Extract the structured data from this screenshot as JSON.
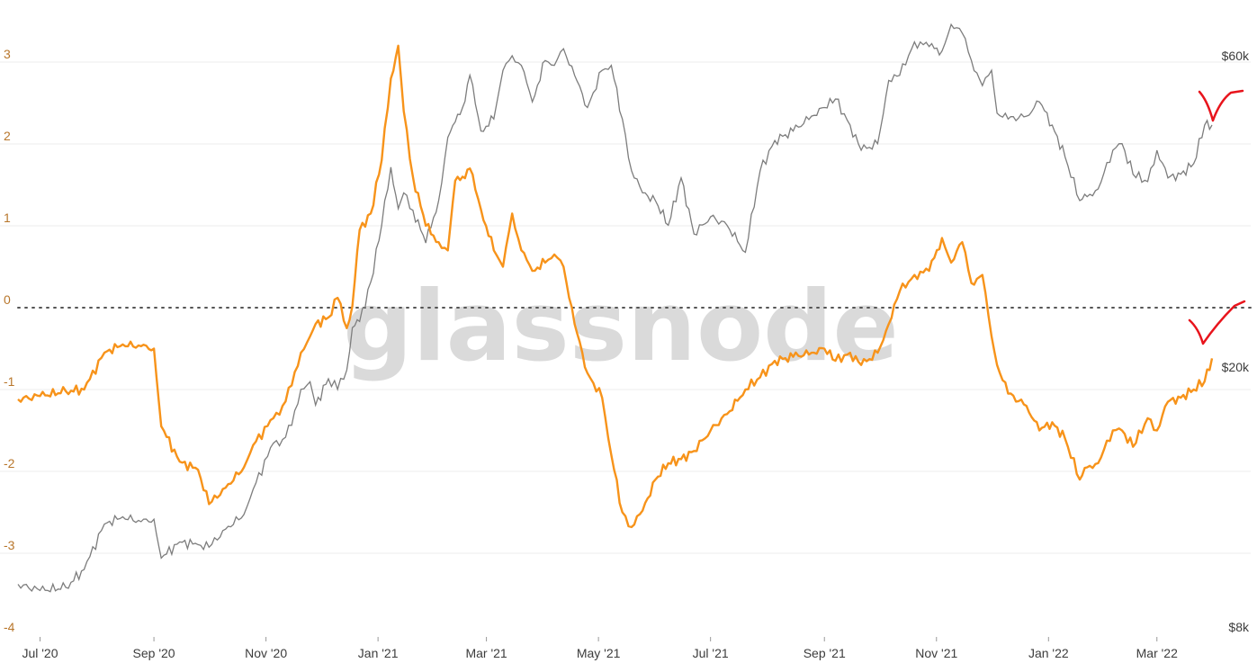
{
  "watermark": "glassnode",
  "colors": {
    "oscillator": "#f7931a",
    "price": "#7d7d7d",
    "annotation": "#e8141c",
    "grid": "#ececec"
  },
  "chart_data": {
    "type": "line",
    "title": "",
    "xlabel": "",
    "ylabel_left": "",
    "ylabel_right": "",
    "x_ticks": [
      "Jul '20",
      "Sep '20",
      "Nov '20",
      "Jan '21",
      "Mar '21",
      "May '21",
      "Jul '21",
      "Sep '21",
      "Nov '21",
      "Jan '22",
      "Mar '22"
    ],
    "y_left": {
      "range": [
        -4,
        3.3
      ],
      "ticks": [
        "3",
        "2",
        "1",
        "0",
        "-1",
        "-2",
        "-3",
        "-4"
      ]
    },
    "y_right": {
      "scale": "log",
      "range": [
        8000,
        68000
      ],
      "ticks": [
        "$60k",
        "$20k",
        "$8k"
      ]
    },
    "zero_line": {
      "value": 0,
      "style": "dotted"
    },
    "legend": "none",
    "grid": true,
    "series": [
      {
        "axis": "left",
        "x": [
          "2020-06-19",
          "2020-07-01",
          "2020-07-15",
          "2020-07-25",
          "2020-08-05",
          "2020-08-15",
          "2020-08-25",
          "2020-09-01",
          "2020-09-05",
          "2020-09-15",
          "2020-09-25",
          "2020-10-01",
          "2020-10-10",
          "2020-10-20",
          "2020-10-25",
          "2020-11-05",
          "2020-11-10",
          "2020-11-15",
          "2020-11-20",
          "2020-11-25",
          "2020-11-28",
          "2020-12-05",
          "2020-12-10",
          "2020-12-15",
          "2020-12-18",
          "2020-12-22",
          "2020-12-28",
          "2021-01-03",
          "2021-01-08",
          "2021-01-12",
          "2021-01-15",
          "2021-01-20",
          "2021-01-27",
          "2021-02-03",
          "2021-02-08",
          "2021-02-12",
          "2021-02-16",
          "2021-02-20",
          "2021-02-26",
          "2021-03-05",
          "2021-03-10",
          "2021-03-15",
          "2021-03-20",
          "2021-03-26",
          "2021-04-02",
          "2021-04-07",
          "2021-04-12",
          "2021-04-18",
          "2021-04-25",
          "2021-05-03",
          "2021-05-08",
          "2021-05-14",
          "2021-05-19",
          "2021-05-25",
          "2021-06-01",
          "2021-06-08",
          "2021-06-15",
          "2021-06-22",
          "2021-07-01",
          "2021-07-10",
          "2021-07-20",
          "2021-07-28",
          "2021-08-05",
          "2021-08-15",
          "2021-08-25",
          "2021-09-01",
          "2021-09-07",
          "2021-09-15",
          "2021-09-21",
          "2021-09-30",
          "2021-10-06",
          "2021-10-12",
          "2021-10-20",
          "2021-10-28",
          "2021-11-04",
          "2021-11-09",
          "2021-11-15",
          "2021-11-20",
          "2021-11-26",
          "2021-12-01",
          "2021-12-04",
          "2021-12-10",
          "2021-12-20",
          "2021-12-27",
          "2022-01-03",
          "2022-01-10",
          "2022-01-18",
          "2022-01-22",
          "2022-01-28",
          "2022-02-05",
          "2022-02-10",
          "2022-02-16",
          "2022-02-24",
          "2022-03-01",
          "2022-03-07",
          "2022-03-14",
          "2022-03-21",
          "2022-03-27",
          "2022-03-31"
        ],
        "values": [
          -1.12,
          -1.08,
          -1.02,
          -1.0,
          -0.55,
          -0.45,
          -0.47,
          -0.5,
          -1.45,
          -1.88,
          -1.98,
          -2.4,
          -2.2,
          -1.95,
          -1.68,
          -1.35,
          -1.2,
          -0.95,
          -0.55,
          -0.35,
          -0.2,
          -0.12,
          0.12,
          -0.25,
          0.02,
          0.95,
          1.15,
          1.8,
          2.8,
          3.2,
          2.4,
          1.6,
          1.0,
          0.8,
          0.7,
          1.55,
          1.6,
          1.7,
          1.2,
          0.7,
          0.5,
          1.15,
          0.7,
          0.45,
          0.55,
          0.65,
          0.5,
          -0.2,
          -0.8,
          -1.1,
          -1.8,
          -2.5,
          -2.68,
          -2.48,
          -2.1,
          -1.9,
          -1.85,
          -1.75,
          -1.5,
          -1.3,
          -1.0,
          -0.85,
          -0.65,
          -0.6,
          -0.55,
          -0.5,
          -0.65,
          -0.55,
          -0.7,
          -0.55,
          -0.2,
          0.2,
          0.4,
          0.45,
          0.85,
          0.55,
          0.8,
          0.3,
          0.4,
          -0.35,
          -0.7,
          -1.05,
          -1.2,
          -1.5,
          -1.4,
          -1.6,
          -2.1,
          -1.95,
          -1.9,
          -1.5,
          -1.5,
          -1.7,
          -1.35,
          -1.5,
          -1.15,
          -1.1,
          -1.0,
          -0.9,
          -0.62
        ]
      },
      {
        "axis": "right",
        "x": [
          "2020-06-19",
          "2020-07-01",
          "2020-07-15",
          "2020-07-25",
          "2020-08-05",
          "2020-08-15",
          "2020-08-25",
          "2020-09-01",
          "2020-09-05",
          "2020-09-15",
          "2020-09-25",
          "2020-10-01",
          "2020-10-10",
          "2020-10-20",
          "2020-10-25",
          "2020-11-05",
          "2020-11-10",
          "2020-11-15",
          "2020-11-20",
          "2020-11-25",
          "2020-11-28",
          "2020-12-05",
          "2020-12-10",
          "2020-12-15",
          "2020-12-18",
          "2020-12-22",
          "2020-12-28",
          "2021-01-03",
          "2021-01-08",
          "2021-01-12",
          "2021-01-15",
          "2021-01-20",
          "2021-01-27",
          "2021-02-03",
          "2021-02-08",
          "2021-02-12",
          "2021-02-16",
          "2021-02-20",
          "2021-02-26",
          "2021-03-05",
          "2021-03-10",
          "2021-03-15",
          "2021-03-20",
          "2021-03-26",
          "2021-04-02",
          "2021-04-07",
          "2021-04-12",
          "2021-04-18",
          "2021-04-25",
          "2021-05-03",
          "2021-05-08",
          "2021-05-14",
          "2021-05-19",
          "2021-05-25",
          "2021-06-01",
          "2021-06-08",
          "2021-06-15",
          "2021-06-22",
          "2021-07-01",
          "2021-07-10",
          "2021-07-20",
          "2021-07-28",
          "2021-08-05",
          "2021-08-15",
          "2021-08-25",
          "2021-09-01",
          "2021-09-07",
          "2021-09-15",
          "2021-09-21",
          "2021-09-30",
          "2021-10-06",
          "2021-10-12",
          "2021-10-20",
          "2021-10-28",
          "2021-11-04",
          "2021-11-09",
          "2021-11-15",
          "2021-11-20",
          "2021-11-26",
          "2021-12-01",
          "2021-12-04",
          "2021-12-10",
          "2021-12-20",
          "2021-12-27",
          "2022-01-03",
          "2022-01-10",
          "2022-01-18",
          "2022-01-22",
          "2022-01-28",
          "2022-02-05",
          "2022-02-10",
          "2022-02-16",
          "2022-02-24",
          "2022-03-01",
          "2022-03-07",
          "2022-03-14",
          "2022-03-21",
          "2022-03-27",
          "2022-03-31"
        ],
        "values": [
          9300,
          9100,
          9200,
          9800,
          11500,
          11800,
          11600,
          11700,
          10200,
          10800,
          10700,
          10600,
          11300,
          11900,
          13000,
          15300,
          15500,
          16300,
          18500,
          19000,
          17500,
          19200,
          18500,
          19800,
          23000,
          23500,
          27000,
          33000,
          40500,
          35000,
          37000,
          34800,
          31000,
          36000,
          45000,
          47500,
          50000,
          56000,
          46000,
          48000,
          57000,
          60000,
          58000,
          51000,
          59000,
          58000,
          61500,
          56000,
          50000,
          57000,
          58000,
          48000,
          40000,
          37000,
          36000,
          33000,
          39000,
          32000,
          34000,
          33000,
          30000,
          40000,
          44500,
          46000,
          48500,
          50000,
          51500,
          47000,
          43000,
          44000,
          55000,
          56000,
          63000,
          62000,
          61000,
          67000,
          65000,
          59000,
          54000,
          57000,
          49000,
          48000,
          48500,
          51000,
          47000,
          42000,
          36000,
          36500,
          37500,
          43000,
          44000,
          39500,
          38500,
          43000,
          39000,
          39500,
          41000,
          47000,
          47000
        ]
      }
    ],
    "annotations": [
      {
        "type": "checkmark",
        "color": "#e8141c",
        "near_series": "price",
        "x_range": [
          "2022-03-25",
          "2022-04-05"
        ]
      },
      {
        "type": "checkmark",
        "color": "#e8141c",
        "near_series": "oscillator",
        "x_range": [
          "2022-03-25",
          "2022-04-06"
        ]
      }
    ]
  }
}
